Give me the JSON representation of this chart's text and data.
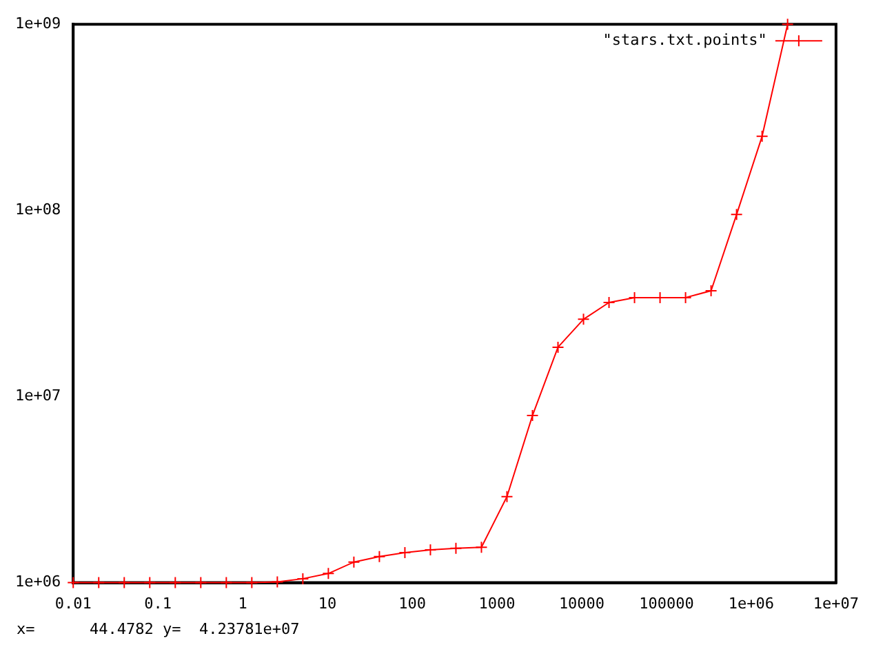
{
  "chart_data": {
    "type": "line",
    "x": [
      0.01,
      0.02,
      0.04,
      0.08,
      0.16,
      0.32,
      0.64,
      1.28,
      2.56,
      5.12,
      10.24,
      20.48,
      40.96,
      81.92,
      163.84,
      327.68,
      655.36,
      1310.72,
      2621.44,
      5242.88,
      10485.76,
      20971.52,
      41943.04,
      83886.08,
      167772.16,
      335544.32,
      671088.64,
      1342177.28,
      2684354.56
    ],
    "series": [
      {
        "name": "\"stars.txt.points\"",
        "color": "#ff0000",
        "values": [
          1000000,
          1000000,
          1000000,
          1000000,
          1000000,
          1000000,
          1000000,
          1000000,
          1010000,
          1050000,
          1120000,
          1290000,
          1380000,
          1450000,
          1500000,
          1530000,
          1550000,
          2900000,
          7900000,
          18400000,
          26000000,
          32000000,
          34000000,
          34000000,
          34000000,
          37000000,
          95000000,
          250000000,
          1000000000
        ]
      }
    ],
    "log": "xy",
    "xlim": [
      0.01,
      10000000
    ],
    "ylim": [
      1000000,
      1000000000
    ],
    "xticks": [
      0.01,
      0.1,
      1,
      10,
      100,
      1000,
      10000,
      100000,
      {
        "value": 1000000,
        "label": "1e+06"
      },
      {
        "value": 10000000,
        "label": "1e+07"
      }
    ],
    "yticks": [
      {
        "value": 1000000,
        "label": "1e+06"
      },
      {
        "value": 10000000,
        "label": "1e+07"
      },
      {
        "value": 100000000,
        "label": "1e+08"
      },
      {
        "value": 1000000000,
        "label": "1e+09"
      }
    ],
    "grid": false,
    "legend": "top right",
    "marker": "cross",
    "line_style": "solid",
    "annotations": [
      "x=      44.4782 y=  4.23781e+07"
    ]
  }
}
